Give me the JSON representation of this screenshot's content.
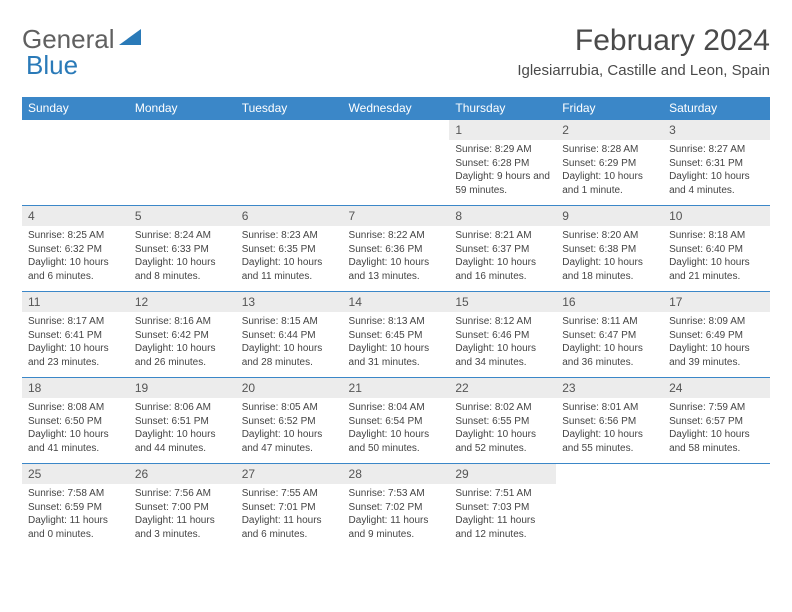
{
  "logo": {
    "text1": "General",
    "text2": "Blue"
  },
  "title": "February 2024",
  "location": "Iglesiarrubia, Castille and Leon, Spain",
  "colors": {
    "header_bg": "#3b87c8",
    "header_text": "#ffffff",
    "daynum_bg": "#ececec",
    "border": "#3b87c8",
    "text": "#444444",
    "logo_gray": "#606060",
    "logo_blue": "#2a7ab8"
  },
  "weekdays": [
    "Sunday",
    "Monday",
    "Tuesday",
    "Wednesday",
    "Thursday",
    "Friday",
    "Saturday"
  ],
  "weeks": [
    [
      {
        "day": "",
        "sunrise": "",
        "sunset": "",
        "daylight": "",
        "empty": true
      },
      {
        "day": "",
        "sunrise": "",
        "sunset": "",
        "daylight": "",
        "empty": true
      },
      {
        "day": "",
        "sunrise": "",
        "sunset": "",
        "daylight": "",
        "empty": true
      },
      {
        "day": "",
        "sunrise": "",
        "sunset": "",
        "daylight": "",
        "empty": true
      },
      {
        "day": "1",
        "sunrise": "Sunrise: 8:29 AM",
        "sunset": "Sunset: 6:28 PM",
        "daylight": "Daylight: 9 hours and 59 minutes."
      },
      {
        "day": "2",
        "sunrise": "Sunrise: 8:28 AM",
        "sunset": "Sunset: 6:29 PM",
        "daylight": "Daylight: 10 hours and 1 minute."
      },
      {
        "day": "3",
        "sunrise": "Sunrise: 8:27 AM",
        "sunset": "Sunset: 6:31 PM",
        "daylight": "Daylight: 10 hours and 4 minutes."
      }
    ],
    [
      {
        "day": "4",
        "sunrise": "Sunrise: 8:25 AM",
        "sunset": "Sunset: 6:32 PM",
        "daylight": "Daylight: 10 hours and 6 minutes."
      },
      {
        "day": "5",
        "sunrise": "Sunrise: 8:24 AM",
        "sunset": "Sunset: 6:33 PM",
        "daylight": "Daylight: 10 hours and 8 minutes."
      },
      {
        "day": "6",
        "sunrise": "Sunrise: 8:23 AM",
        "sunset": "Sunset: 6:35 PM",
        "daylight": "Daylight: 10 hours and 11 minutes."
      },
      {
        "day": "7",
        "sunrise": "Sunrise: 8:22 AM",
        "sunset": "Sunset: 6:36 PM",
        "daylight": "Daylight: 10 hours and 13 minutes."
      },
      {
        "day": "8",
        "sunrise": "Sunrise: 8:21 AM",
        "sunset": "Sunset: 6:37 PM",
        "daylight": "Daylight: 10 hours and 16 minutes."
      },
      {
        "day": "9",
        "sunrise": "Sunrise: 8:20 AM",
        "sunset": "Sunset: 6:38 PM",
        "daylight": "Daylight: 10 hours and 18 minutes."
      },
      {
        "day": "10",
        "sunrise": "Sunrise: 8:18 AM",
        "sunset": "Sunset: 6:40 PM",
        "daylight": "Daylight: 10 hours and 21 minutes."
      }
    ],
    [
      {
        "day": "11",
        "sunrise": "Sunrise: 8:17 AM",
        "sunset": "Sunset: 6:41 PM",
        "daylight": "Daylight: 10 hours and 23 minutes."
      },
      {
        "day": "12",
        "sunrise": "Sunrise: 8:16 AM",
        "sunset": "Sunset: 6:42 PM",
        "daylight": "Daylight: 10 hours and 26 minutes."
      },
      {
        "day": "13",
        "sunrise": "Sunrise: 8:15 AM",
        "sunset": "Sunset: 6:44 PM",
        "daylight": "Daylight: 10 hours and 28 minutes."
      },
      {
        "day": "14",
        "sunrise": "Sunrise: 8:13 AM",
        "sunset": "Sunset: 6:45 PM",
        "daylight": "Daylight: 10 hours and 31 minutes."
      },
      {
        "day": "15",
        "sunrise": "Sunrise: 8:12 AM",
        "sunset": "Sunset: 6:46 PM",
        "daylight": "Daylight: 10 hours and 34 minutes."
      },
      {
        "day": "16",
        "sunrise": "Sunrise: 8:11 AM",
        "sunset": "Sunset: 6:47 PM",
        "daylight": "Daylight: 10 hours and 36 minutes."
      },
      {
        "day": "17",
        "sunrise": "Sunrise: 8:09 AM",
        "sunset": "Sunset: 6:49 PM",
        "daylight": "Daylight: 10 hours and 39 minutes."
      }
    ],
    [
      {
        "day": "18",
        "sunrise": "Sunrise: 8:08 AM",
        "sunset": "Sunset: 6:50 PM",
        "daylight": "Daylight: 10 hours and 41 minutes."
      },
      {
        "day": "19",
        "sunrise": "Sunrise: 8:06 AM",
        "sunset": "Sunset: 6:51 PM",
        "daylight": "Daylight: 10 hours and 44 minutes."
      },
      {
        "day": "20",
        "sunrise": "Sunrise: 8:05 AM",
        "sunset": "Sunset: 6:52 PM",
        "daylight": "Daylight: 10 hours and 47 minutes."
      },
      {
        "day": "21",
        "sunrise": "Sunrise: 8:04 AM",
        "sunset": "Sunset: 6:54 PM",
        "daylight": "Daylight: 10 hours and 50 minutes."
      },
      {
        "day": "22",
        "sunrise": "Sunrise: 8:02 AM",
        "sunset": "Sunset: 6:55 PM",
        "daylight": "Daylight: 10 hours and 52 minutes."
      },
      {
        "day": "23",
        "sunrise": "Sunrise: 8:01 AM",
        "sunset": "Sunset: 6:56 PM",
        "daylight": "Daylight: 10 hours and 55 minutes."
      },
      {
        "day": "24",
        "sunrise": "Sunrise: 7:59 AM",
        "sunset": "Sunset: 6:57 PM",
        "daylight": "Daylight: 10 hours and 58 minutes."
      }
    ],
    [
      {
        "day": "25",
        "sunrise": "Sunrise: 7:58 AM",
        "sunset": "Sunset: 6:59 PM",
        "daylight": "Daylight: 11 hours and 0 minutes."
      },
      {
        "day": "26",
        "sunrise": "Sunrise: 7:56 AM",
        "sunset": "Sunset: 7:00 PM",
        "daylight": "Daylight: 11 hours and 3 minutes."
      },
      {
        "day": "27",
        "sunrise": "Sunrise: 7:55 AM",
        "sunset": "Sunset: 7:01 PM",
        "daylight": "Daylight: 11 hours and 6 minutes."
      },
      {
        "day": "28",
        "sunrise": "Sunrise: 7:53 AM",
        "sunset": "Sunset: 7:02 PM",
        "daylight": "Daylight: 11 hours and 9 minutes."
      },
      {
        "day": "29",
        "sunrise": "Sunrise: 7:51 AM",
        "sunset": "Sunset: 7:03 PM",
        "daylight": "Daylight: 11 hours and 12 minutes."
      },
      {
        "day": "",
        "sunrise": "",
        "sunset": "",
        "daylight": "",
        "empty": true
      },
      {
        "day": "",
        "sunrise": "",
        "sunset": "",
        "daylight": "",
        "empty": true
      }
    ]
  ]
}
